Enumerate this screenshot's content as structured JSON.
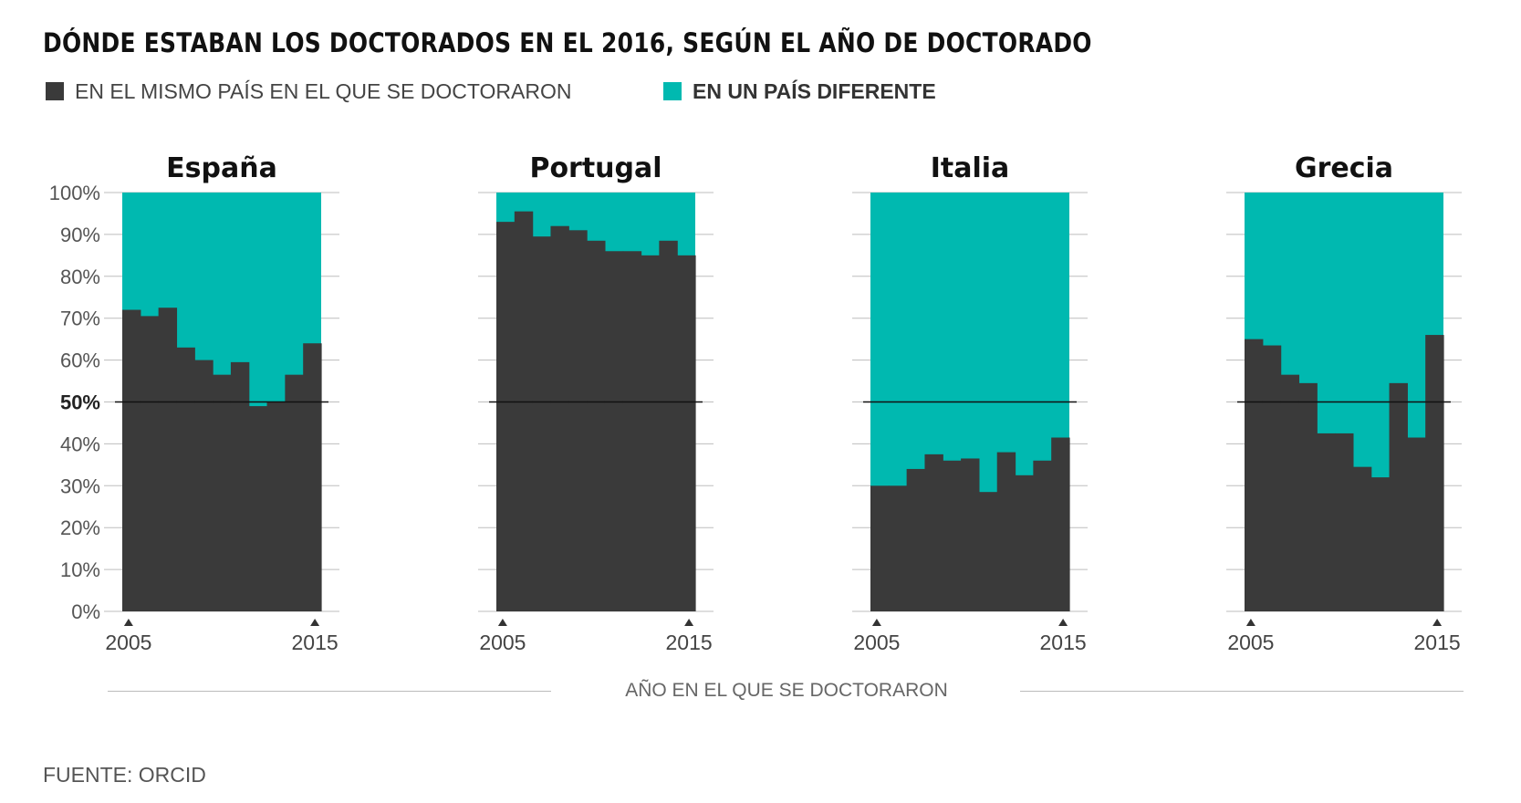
{
  "title": "DÓNDE ESTABAN LOS DOCTORADOS EN EL 2016, SEGÚN EL AÑO DE DOCTORADO",
  "legend": {
    "same": {
      "label": "EN EL MISMO PAÍS EN EL QUE SE DOCTORARON",
      "color": "#3a3a3a"
    },
    "different": {
      "label": "EN UN PAÍS DIFERENTE",
      "color": "#00b9b0"
    }
  },
  "x_axis_title": "AÑO EN EL QUE SE DOCTORARON",
  "source": "FUENTE: ORCID",
  "reference_label": "50%",
  "chart_data": {
    "type": "area",
    "y_unit": "%",
    "ylim": [
      0,
      100
    ],
    "y_ticks": [
      "0%",
      "10%",
      "20%",
      "30%",
      "40%",
      "50%",
      "60%",
      "70%",
      "80%",
      "90%",
      "100%"
    ],
    "reference_line": 50,
    "x": [
      2005,
      2006,
      2007,
      2008,
      2009,
      2010,
      2011,
      2012,
      2013,
      2014,
      2015
    ],
    "x_tick_labels": [
      "2005",
      "2015"
    ],
    "stacked": true,
    "grid": true,
    "panels": [
      {
        "title": "España",
        "series": [
          {
            "name": "EN EL MISMO PAÍS EN EL QUE SE DOCTORARON",
            "values": [
              72,
              70.5,
              72.5,
              63,
              60,
              56.5,
              59.5,
              49,
              50,
              56.5,
              64
            ]
          },
          {
            "name": "EN UN PAÍS DIFERENTE",
            "values": [
              28,
              29.5,
              27.5,
              37,
              40,
              43.5,
              40.5,
              51,
              50,
              43.5,
              36
            ]
          }
        ]
      },
      {
        "title": "Portugal",
        "series": [
          {
            "name": "EN EL MISMO PAÍS EN EL QUE SE DOCTORARON",
            "values": [
              93,
              95.5,
              89.5,
              92,
              91,
              88.5,
              86,
              86,
              85,
              88.5,
              85
            ]
          },
          {
            "name": "EN UN PAÍS DIFERENTE",
            "values": [
              7,
              4.5,
              10.5,
              8,
              9,
              11.5,
              14,
              14,
              15,
              11.5,
              15
            ]
          }
        ]
      },
      {
        "title": "Italia",
        "series": [
          {
            "name": "EN EL MISMO PAÍS EN EL QUE SE DOCTORARON",
            "values": [
              30,
              30,
              34,
              37.5,
              36,
              36.5,
              28.5,
              38,
              32.5,
              36,
              41.5
            ]
          },
          {
            "name": "EN UN PAÍS DIFERENTE",
            "values": [
              70,
              70,
              66,
              62.5,
              64,
              63.5,
              71.5,
              62,
              67.5,
              64,
              58.5
            ]
          }
        ]
      },
      {
        "title": "Grecia",
        "series": [
          {
            "name": "EN EL MISMO PAÍS EN EL QUE SE DOCTORARON",
            "values": [
              65,
              63.5,
              56.5,
              54.5,
              42.5,
              42.5,
              34.5,
              32,
              54.5,
              41.5,
              66
            ]
          },
          {
            "name": "EN UN PAÍS DIFERENTE",
            "values": [
              35,
              36.5,
              43.5,
              45.5,
              57.5,
              57.5,
              65.5,
              68,
              45.5,
              58.5,
              34
            ]
          }
        ]
      }
    ]
  }
}
